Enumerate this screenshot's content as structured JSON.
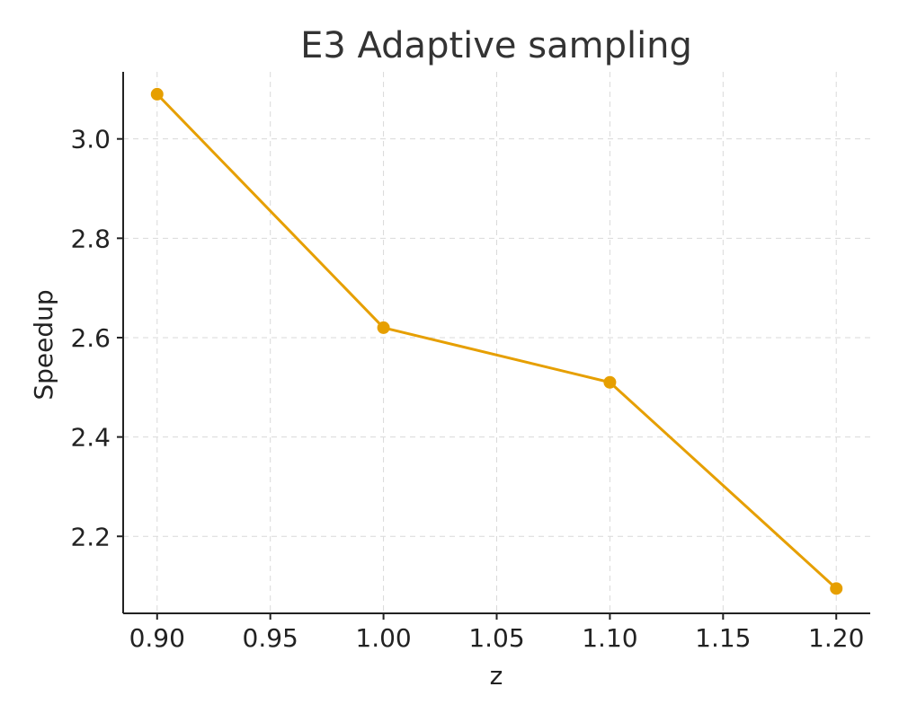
{
  "chart_data": {
    "type": "line",
    "title": "E3 Adaptive sampling",
    "xlabel": "z",
    "ylabel": "Speedup",
    "x": [
      0.9,
      1.0,
      1.1,
      1.2
    ],
    "series": [
      {
        "values": [
          3.09,
          2.62,
          2.51,
          2.095
        ],
        "color": "#E69F00"
      }
    ],
    "xlim": [
      0.885,
      1.215
    ],
    "ylim": [
      2.045,
      3.135
    ],
    "xticks": [
      0.9,
      0.95,
      1.0,
      1.05,
      1.1,
      1.15,
      1.2
    ],
    "xtick_labels": [
      "0.90",
      "0.95",
      "1.00",
      "1.05",
      "1.10",
      "1.15",
      "1.20"
    ],
    "yticks": [
      2.2,
      2.4,
      2.6,
      2.8,
      3.0
    ],
    "ytick_labels": [
      "2.2",
      "2.4",
      "2.6",
      "2.8",
      "3.0"
    ],
    "grid": true,
    "markers": true
  }
}
